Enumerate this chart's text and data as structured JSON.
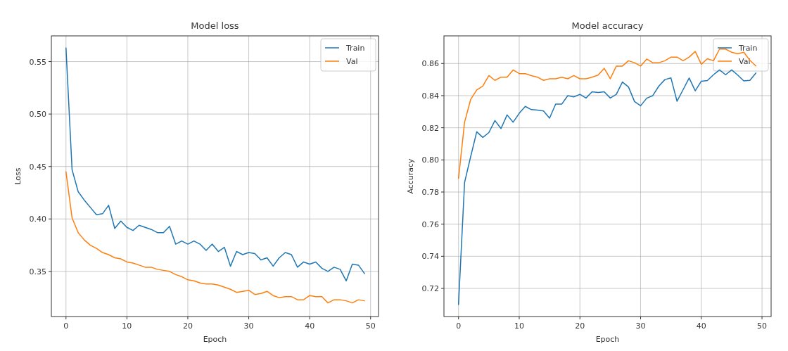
{
  "chart_data": [
    {
      "type": "line",
      "title": "Model loss",
      "xlabel": "Epoch",
      "ylabel": "Loss",
      "x": [
        0,
        1,
        2,
        3,
        4,
        5,
        6,
        7,
        8,
        9,
        10,
        11,
        12,
        13,
        14,
        15,
        16,
        17,
        18,
        19,
        20,
        21,
        22,
        23,
        24,
        25,
        26,
        27,
        28,
        29,
        30,
        31,
        32,
        33,
        34,
        35,
        36,
        37,
        38,
        39,
        40,
        41,
        42,
        43,
        44,
        45,
        46,
        47,
        48,
        49
      ],
      "series": [
        {
          "name": "Train",
          "color": "#1f77b4",
          "values": [
            0.563,
            0.447,
            0.426,
            0.418,
            0.411,
            0.404,
            0.405,
            0.413,
            0.391,
            0.398,
            0.392,
            0.389,
            0.394,
            0.392,
            0.39,
            0.387,
            0.387,
            0.393,
            0.376,
            0.379,
            0.376,
            0.379,
            0.376,
            0.37,
            0.376,
            0.369,
            0.373,
            0.355,
            0.369,
            0.366,
            0.368,
            0.367,
            0.361,
            0.363,
            0.355,
            0.363,
            0.368,
            0.366,
            0.354,
            0.359,
            0.357,
            0.359,
            0.353,
            0.35,
            0.354,
            0.352,
            0.341,
            0.357,
            0.356,
            0.348
          ]
        },
        {
          "name": "Val",
          "color": "#ff7f0e",
          "values": [
            0.445,
            0.401,
            0.387,
            0.38,
            0.375,
            0.372,
            0.368,
            0.366,
            0.363,
            0.362,
            0.359,
            0.358,
            0.356,
            0.354,
            0.354,
            0.352,
            0.351,
            0.35,
            0.347,
            0.345,
            0.342,
            0.341,
            0.339,
            0.338,
            0.338,
            0.337,
            0.335,
            0.333,
            0.33,
            0.331,
            0.332,
            0.328,
            0.329,
            0.331,
            0.327,
            0.325,
            0.326,
            0.326,
            0.323,
            0.323,
            0.327,
            0.326,
            0.326,
            0.32,
            0.323,
            0.323,
            0.322,
            0.32,
            0.323,
            0.322
          ]
        }
      ],
      "xlim": [
        -2.4,
        51.3
      ],
      "xticks": [
        0,
        10,
        20,
        30,
        40,
        50
      ],
      "ylim": [
        0.307,
        0.5745
      ],
      "yticks": [
        {
          "value": 0.35,
          "label": "0.35"
        },
        {
          "value": 0.4,
          "label": "0.40"
        },
        {
          "value": 0.45,
          "label": "0.45"
        },
        {
          "value": 0.5,
          "label": "0.50"
        },
        {
          "value": 0.55,
          "label": "0.55"
        }
      ],
      "grid": true,
      "legend": "top right"
    },
    {
      "type": "line",
      "title": "Model accuracy",
      "xlabel": "Epoch",
      "ylabel": "Accuracy",
      "x": [
        0,
        1,
        2,
        3,
        4,
        5,
        6,
        7,
        8,
        9,
        10,
        11,
        12,
        13,
        14,
        15,
        16,
        17,
        18,
        19,
        20,
        21,
        22,
        23,
        24,
        25,
        26,
        27,
        28,
        29,
        30,
        31,
        32,
        33,
        34,
        35,
        36,
        37,
        38,
        39,
        40,
        41,
        42,
        43,
        44,
        45,
        46,
        47,
        48,
        49
      ],
      "series": [
        {
          "name": "Train",
          "color": "#1f77b4",
          "values": [
            0.71,
            0.786,
            0.802,
            0.8175,
            0.814,
            0.817,
            0.8245,
            0.8195,
            0.828,
            0.8235,
            0.829,
            0.8333,
            0.8313,
            0.831,
            0.8305,
            0.826,
            0.8347,
            0.8347,
            0.84,
            0.8392,
            0.8408,
            0.8385,
            0.8424,
            0.842,
            0.8424,
            0.8385,
            0.8408,
            0.8485,
            0.8454,
            0.8363,
            0.8337,
            0.8384,
            0.84,
            0.8459,
            0.85,
            0.851,
            0.8365,
            0.8437,
            0.851,
            0.843,
            0.849,
            0.8494,
            0.853,
            0.856,
            0.853,
            0.856,
            0.8528,
            0.8492,
            0.8495,
            0.8541
          ]
        },
        {
          "name": "Val",
          "color": "#ff7f0e",
          "values": [
            0.7885,
            0.8235,
            0.8376,
            0.8435,
            0.846,
            0.8525,
            0.8495,
            0.8515,
            0.8515,
            0.856,
            0.8537,
            0.8537,
            0.8525,
            0.8515,
            0.8495,
            0.8505,
            0.8505,
            0.8515,
            0.8505,
            0.8525,
            0.8505,
            0.8505,
            0.8515,
            0.8528,
            0.857,
            0.8505,
            0.8584,
            0.8584,
            0.8617,
            0.8605,
            0.8584,
            0.8628,
            0.8605,
            0.8605,
            0.8617,
            0.864,
            0.864,
            0.8617,
            0.864,
            0.8675,
            0.8595,
            0.863,
            0.8617,
            0.869,
            0.869,
            0.867,
            0.866,
            0.867,
            0.862,
            0.8585
          ]
        }
      ],
      "xlim": [
        -2.4,
        51.5
      ],
      "xticks": [
        0,
        10,
        20,
        30,
        40,
        50
      ],
      "ylim": [
        0.7025,
        0.8772
      ],
      "yticks": [
        {
          "value": 0.72,
          "label": "0.72"
        },
        {
          "value": 0.74,
          "label": "0.74"
        },
        {
          "value": 0.76,
          "label": "0.76"
        },
        {
          "value": 0.78,
          "label": "0.78"
        },
        {
          "value": 0.8,
          "label": "0.80"
        },
        {
          "value": 0.82,
          "label": "0.82"
        },
        {
          "value": 0.84,
          "label": "0.84"
        },
        {
          "value": 0.86,
          "label": "0.86"
        }
      ],
      "grid": true,
      "legend": "top right"
    }
  ]
}
